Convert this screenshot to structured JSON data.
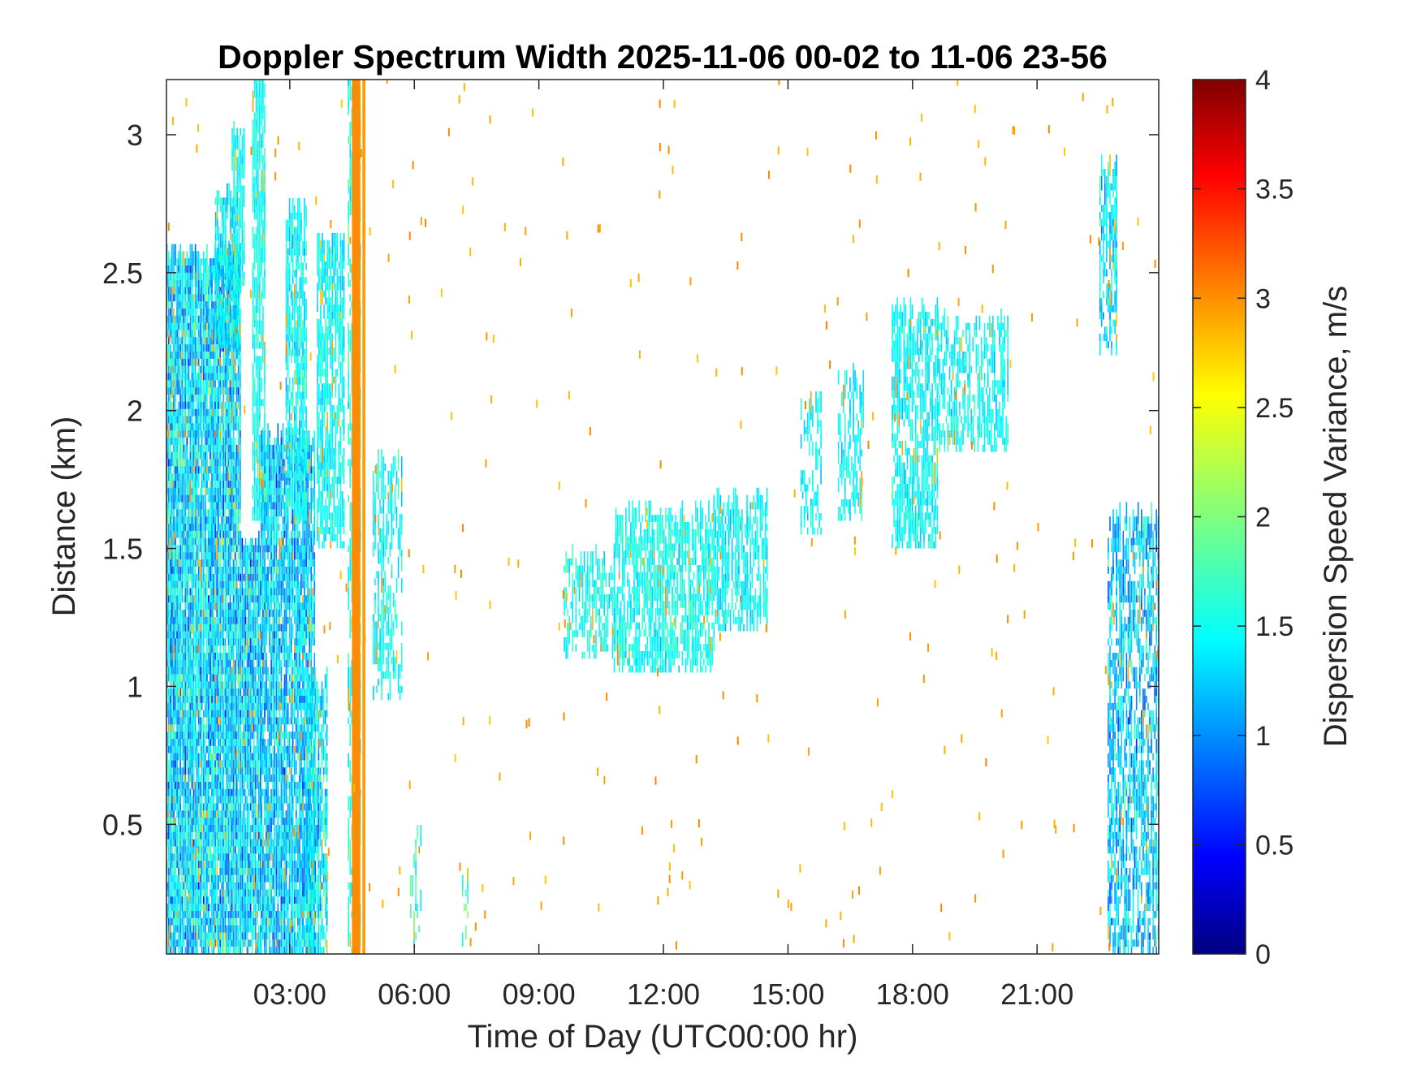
{
  "chart_data": {
    "type": "heatmap",
    "title": "Doppler Spectrum Width 2025-11-06 00-02 to 11-06 23-56",
    "xlabel": "Time of Day (UTC00:00 hr)",
    "ylabel": "Distance (km)",
    "xlim": [
      0.03,
      23.93
    ],
    "ylim": [
      0.03,
      3.2
    ],
    "x_ticks": [
      3,
      6,
      9,
      12,
      15,
      18,
      21
    ],
    "x_tick_labels": [
      "03:00",
      "06:00",
      "09:00",
      "12:00",
      "15:00",
      "18:00",
      "21:00"
    ],
    "y_ticks": [
      0.5,
      1,
      1.5,
      2,
      2.5,
      3
    ],
    "y_tick_labels": [
      "0.5",
      "1",
      "1.5",
      "2",
      "2.5",
      "3"
    ],
    "grid": false,
    "colorbar": {
      "label": "Dispersion Speed Variance, m/s",
      "colormap": "jet",
      "range": [
        0,
        4
      ],
      "ticks": [
        0,
        0.5,
        1,
        1.5,
        2,
        2.5,
        3,
        3.5,
        4
      ],
      "tick_labels": [
        "0",
        "0.5",
        "1",
        "1.5",
        "2",
        "2.5",
        "3",
        "3.5",
        "4"
      ]
    },
    "regions": [
      {
        "t_start": 0.03,
        "t_end": 1.8,
        "d_low": 0.03,
        "d_high": 2.55,
        "mean": 1.35,
        "spread": 0.45,
        "density": 0.85
      },
      {
        "t_start": 1.8,
        "t_end": 2.3,
        "d_low": 0.03,
        "d_high": 1.5,
        "mean": 1.3,
        "spread": 0.45,
        "density": 0.85
      },
      {
        "t_start": 1.2,
        "t_end": 1.8,
        "d_low": 2.2,
        "d_high": 2.75,
        "mean": 1.45,
        "spread": 0.25,
        "density": 0.55
      },
      {
        "t_start": 1.6,
        "t_end": 1.9,
        "d_low": 2.4,
        "d_high": 3.0,
        "mean": 1.55,
        "spread": 0.2,
        "density": 0.45
      },
      {
        "t_start": 2.1,
        "t_end": 2.4,
        "d_low": 1.6,
        "d_high": 3.2,
        "mean": 1.55,
        "spread": 0.2,
        "density": 0.55
      },
      {
        "t_start": 2.3,
        "t_end": 3.6,
        "d_low": 0.03,
        "d_high": 1.9,
        "mean": 1.3,
        "spread": 0.4,
        "density": 0.75
      },
      {
        "t_start": 2.9,
        "t_end": 3.4,
        "d_low": 1.6,
        "d_high": 2.7,
        "mean": 1.5,
        "spread": 0.25,
        "density": 0.55
      },
      {
        "t_start": 3.4,
        "t_end": 3.9,
        "d_low": 0.03,
        "d_high": 1.0,
        "mean": 1.45,
        "spread": 0.4,
        "density": 0.6
      },
      {
        "t_start": 3.65,
        "t_end": 4.3,
        "d_low": 1.5,
        "d_high": 2.6,
        "mean": 1.5,
        "spread": 0.2,
        "density": 0.55
      },
      {
        "t_start": 4.4,
        "t_end": 4.7,
        "d_low": 0.03,
        "d_high": 3.2,
        "mean": 1.6,
        "spread": 0.25,
        "density": 0.4
      },
      {
        "t_start": 5.0,
        "t_end": 5.7,
        "d_low": 0.95,
        "d_high": 1.8,
        "mean": 1.5,
        "spread": 0.2,
        "density": 0.3
      },
      {
        "t_start": 5.9,
        "t_end": 6.15,
        "d_low": 0.03,
        "d_high": 0.45,
        "mean": 1.7,
        "spread": 0.3,
        "density": 0.25
      },
      {
        "t_start": 7.15,
        "t_end": 7.3,
        "d_low": 0.03,
        "d_high": 0.3,
        "mean": 1.7,
        "spread": 0.3,
        "density": 0.25
      },
      {
        "t_start": 9.6,
        "t_end": 10.8,
        "d_low": 1.1,
        "d_high": 1.45,
        "mean": 1.55,
        "spread": 0.2,
        "density": 0.35
      },
      {
        "t_start": 10.8,
        "t_end": 13.2,
        "d_low": 1.05,
        "d_high": 1.6,
        "mean": 1.55,
        "spread": 0.2,
        "density": 0.5
      },
      {
        "t_start": 13.2,
        "t_end": 14.5,
        "d_low": 1.2,
        "d_high": 1.65,
        "mean": 1.5,
        "spread": 0.2,
        "density": 0.45
      },
      {
        "t_start": 15.3,
        "t_end": 15.8,
        "d_low": 1.55,
        "d_high": 2.0,
        "mean": 1.5,
        "spread": 0.2,
        "density": 0.3
      },
      {
        "t_start": 16.2,
        "t_end": 16.8,
        "d_low": 1.6,
        "d_high": 2.1,
        "mean": 1.5,
        "spread": 0.2,
        "density": 0.3
      },
      {
        "t_start": 17.5,
        "t_end": 18.6,
        "d_low": 1.5,
        "d_high": 2.35,
        "mean": 1.5,
        "spread": 0.2,
        "density": 0.45
      },
      {
        "t_start": 18.6,
        "t_end": 20.3,
        "d_low": 1.85,
        "d_high": 2.3,
        "mean": 1.5,
        "spread": 0.2,
        "density": 0.4
      },
      {
        "t_start": 22.5,
        "t_end": 22.9,
        "d_low": 2.2,
        "d_high": 2.85,
        "mean": 1.4,
        "spread": 0.3,
        "density": 0.4
      },
      {
        "t_start": 22.7,
        "t_end": 23.93,
        "d_low": 0.03,
        "d_high": 1.6,
        "mean": 1.3,
        "spread": 0.4,
        "density": 0.45
      }
    ],
    "persistent_columns": [
      {
        "t_start": 4.5,
        "t_end": 4.7,
        "value": 2.95
      },
      {
        "t_start": 4.75,
        "t_end": 4.82,
        "value": 2.9
      }
    ],
    "scattered_outliers": {
      "value_range": [
        2.7,
        3.0
      ],
      "density": "sparse"
    }
  }
}
